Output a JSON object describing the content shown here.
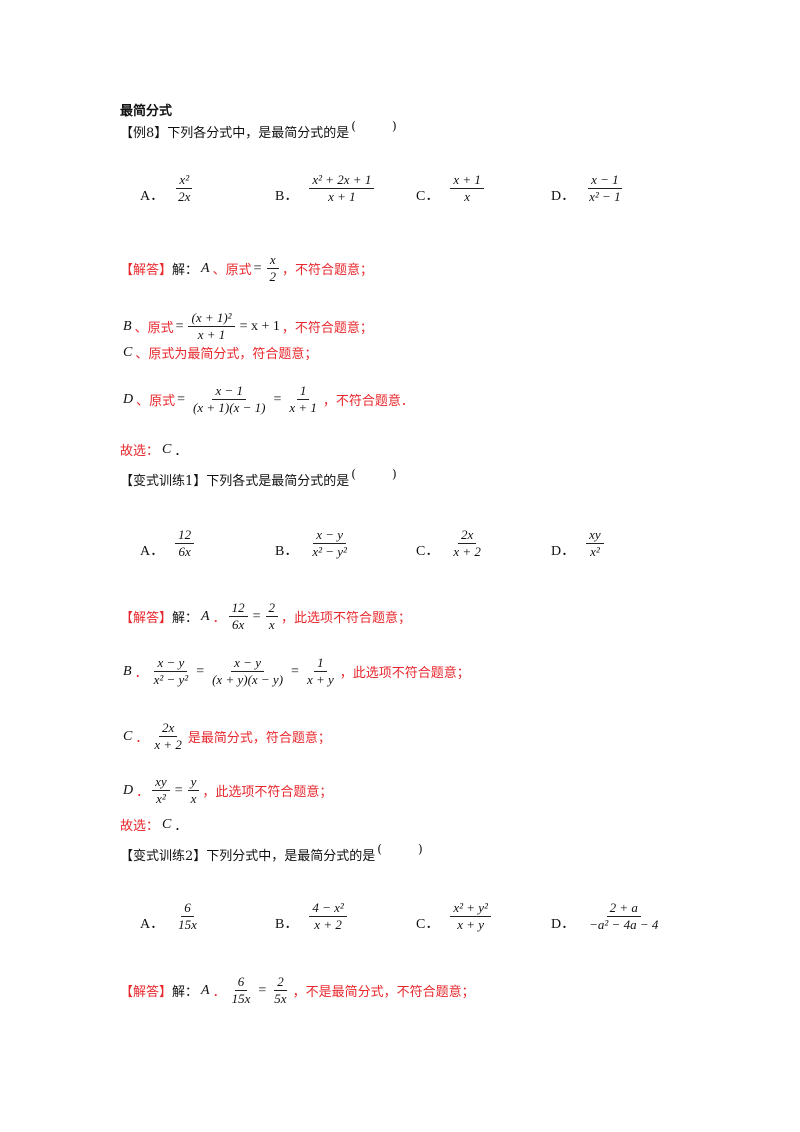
{
  "title": "最简分式",
  "blocks": [
    {
      "kind": "line",
      "segs": [
        {
          "k": "t",
          "v": "【例8】下列各分式中，是最简分式的是"
        },
        {
          "k": "paren",
          "v": "(　　　)"
        }
      ]
    },
    {
      "kind": "opts",
      "opts": [
        {
          "label": "A．",
          "n": "x²",
          "d": "2x"
        },
        {
          "label": "B．",
          "n": "x² + 2x + 1",
          "d": "x + 1"
        },
        {
          "label": "C．",
          "n": "x + 1",
          "d": "x"
        },
        {
          "label": "D．",
          "n": "x − 1",
          "d": "x² − 1"
        }
      ]
    },
    {
      "kind": "line",
      "segs": [
        {
          "k": "r",
          "v": "【解答】"
        },
        {
          "k": "t",
          "v": "解："
        },
        {
          "k": "m",
          "v": "A"
        },
        {
          "k": "r",
          "v": "、原式"
        },
        {
          "k": "op",
          "v": "="
        },
        {
          "k": "f",
          "n": "x",
          "d": "2"
        },
        {
          "k": "r",
          "v": "，不符合题意；"
        }
      ]
    },
    {
      "kind": "line",
      "segs": [
        {
          "k": "m",
          "v": "B"
        },
        {
          "k": "r",
          "v": "、原式"
        },
        {
          "k": "op",
          "v": "="
        },
        {
          "k": "f",
          "n": "(x + 1)²",
          "d": "x + 1"
        },
        {
          "k": "op",
          "v": "= x + 1"
        },
        {
          "k": "r",
          "v": "，不符合题意；"
        }
      ]
    },
    {
      "kind": "line",
      "segs": [
        {
          "k": "m",
          "v": "C"
        },
        {
          "k": "r",
          "v": "、原式为最简分式，符合题意；"
        }
      ]
    },
    {
      "kind": "line",
      "segs": [
        {
          "k": "m",
          "v": "D"
        },
        {
          "k": "r",
          "v": "、原式"
        },
        {
          "k": "op",
          "v": "="
        },
        {
          "k": "f",
          "n": "x − 1",
          "d": "(x + 1)(x − 1)"
        },
        {
          "k": "op",
          "v": "="
        },
        {
          "k": "f",
          "n": "1",
          "d": "x + 1"
        },
        {
          "k": "r",
          "v": "，不符合题意．"
        }
      ]
    },
    {
      "kind": "line",
      "segs": [
        {
          "k": "r",
          "v": "故选："
        },
        {
          "k": "m",
          "v": "C"
        },
        {
          "k": "t",
          "v": "．"
        }
      ]
    },
    {
      "kind": "line",
      "segs": [
        {
          "k": "t",
          "v": "【变式训练1】下列各式是最简分式的是"
        },
        {
          "k": "paren",
          "v": "(　　　)"
        }
      ]
    },
    {
      "kind": "opts",
      "opts": [
        {
          "label": "A．",
          "n": "12",
          "d": "6x"
        },
        {
          "label": "B．",
          "n": "x − y",
          "d": "x² − y²"
        },
        {
          "label": "C．",
          "n": "2x",
          "d": "x + 2"
        },
        {
          "label": "D．",
          "n": "xy",
          "d": "x²"
        }
      ]
    },
    {
      "kind": "line",
      "segs": [
        {
          "k": "r",
          "v": "【解答】"
        },
        {
          "k": "t",
          "v": "解："
        },
        {
          "k": "m",
          "v": "A"
        },
        {
          "k": "r",
          "v": "．"
        },
        {
          "k": "f",
          "n": "12",
          "d": "6x"
        },
        {
          "k": "op",
          "v": "="
        },
        {
          "k": "f",
          "n": "2",
          "d": "x"
        },
        {
          "k": "r",
          "v": "，此选项不符合题意；"
        }
      ]
    },
    {
      "kind": "line",
      "segs": [
        {
          "k": "m",
          "v": "B"
        },
        {
          "k": "r",
          "v": "．"
        },
        {
          "k": "f",
          "n": "x − y",
          "d": "x² − y²"
        },
        {
          "k": "op",
          "v": "="
        },
        {
          "k": "f",
          "n": "x − y",
          "d": "(x + y)(x − y)"
        },
        {
          "k": "op",
          "v": "="
        },
        {
          "k": "f",
          "n": "1",
          "d": "x + y"
        },
        {
          "k": "r",
          "v": "，此选项不符合题意；"
        }
      ]
    },
    {
      "kind": "line",
      "segs": [
        {
          "k": "m",
          "v": "C"
        },
        {
          "k": "r",
          "v": "．"
        },
        {
          "k": "f",
          "n": "2x",
          "d": "x + 2"
        },
        {
          "k": "r",
          "v": "是最简分式，符合题意；"
        }
      ]
    },
    {
      "kind": "line",
      "segs": [
        {
          "k": "m",
          "v": "D"
        },
        {
          "k": "r",
          "v": "．"
        },
        {
          "k": "f",
          "n": "xy",
          "d": "x²"
        },
        {
          "k": "op",
          "v": "="
        },
        {
          "k": "f",
          "n": "y",
          "d": "x"
        },
        {
          "k": "r",
          "v": "，此选项不符合题意；"
        }
      ]
    },
    {
      "kind": "line",
      "segs": [
        {
          "k": "r",
          "v": "故选："
        },
        {
          "k": "m",
          "v": "C"
        },
        {
          "k": "t",
          "v": "．"
        }
      ]
    },
    {
      "kind": "line",
      "segs": [
        {
          "k": "t",
          "v": "【变式训练2】下列分式中，是最简分式的是"
        },
        {
          "k": "paren",
          "v": "(　　　)"
        }
      ]
    },
    {
      "kind": "opts",
      "opts": [
        {
          "label": "A．",
          "n": "6",
          "d": "15x"
        },
        {
          "label": "B．",
          "n": "4 − x²",
          "d": "x + 2"
        },
        {
          "label": "C．",
          "n": "x² + y²",
          "d": "x + y"
        },
        {
          "label": "D．",
          "n": "2 + a",
          "d": "−a² − 4a − 4"
        }
      ]
    },
    {
      "kind": "line",
      "segs": [
        {
          "k": "r",
          "v": "【解答】"
        },
        {
          "k": "t",
          "v": "解："
        },
        {
          "k": "m",
          "v": "A"
        },
        {
          "k": "r",
          "v": "．"
        },
        {
          "k": "f",
          "n": "6",
          "d": "15x"
        },
        {
          "k": "op",
          "v": "="
        },
        {
          "k": "f",
          "n": "2",
          "d": "5x"
        },
        {
          "k": "r",
          "v": "，不是最简分式，不符合题意；"
        }
      ]
    }
  ]
}
